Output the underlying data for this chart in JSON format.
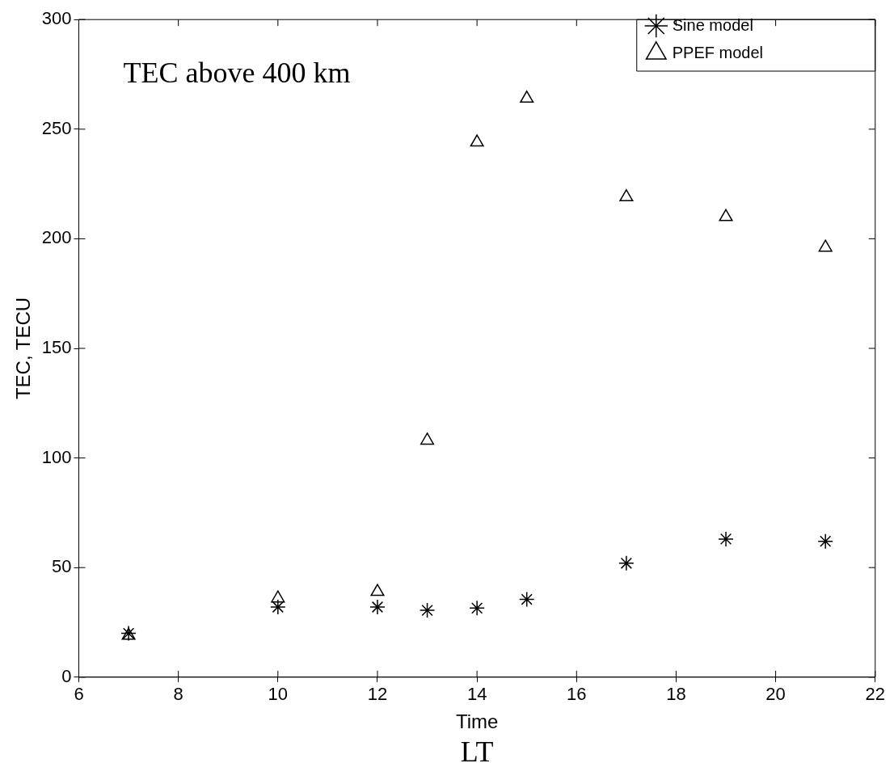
{
  "chart_data": {
    "type": "scatter",
    "xlabel": "Time",
    "ylabel": "TEC, TECU",
    "annotations": [
      "TEC above 400 km",
      "LT"
    ],
    "xlim": [
      6,
      22
    ],
    "xticks": [
      6,
      8,
      10,
      12,
      14,
      16,
      18,
      20,
      22
    ],
    "ylim": [
      0,
      300
    ],
    "yticks": [
      0,
      50,
      100,
      150,
      200,
      250,
      300
    ],
    "grid": false,
    "legend": "top right",
    "series": [
      {
        "name": "Sine model",
        "color": "#000000",
        "marker": "cross",
        "x": [
          7,
          10,
          12,
          13,
          14,
          15,
          17,
          19,
          21
        ],
        "values": [
          20,
          32,
          32,
          30.5,
          31.5,
          35.5,
          52,
          63,
          62
        ]
      },
      {
        "name": "PPEF model",
        "color": "#000000",
        "marker": "triangle",
        "x": [
          7,
          10,
          12,
          13,
          14,
          15,
          17,
          19,
          21
        ],
        "values": [
          19,
          36,
          39,
          108,
          244,
          264,
          219,
          210,
          196
        ]
      }
    ]
  }
}
